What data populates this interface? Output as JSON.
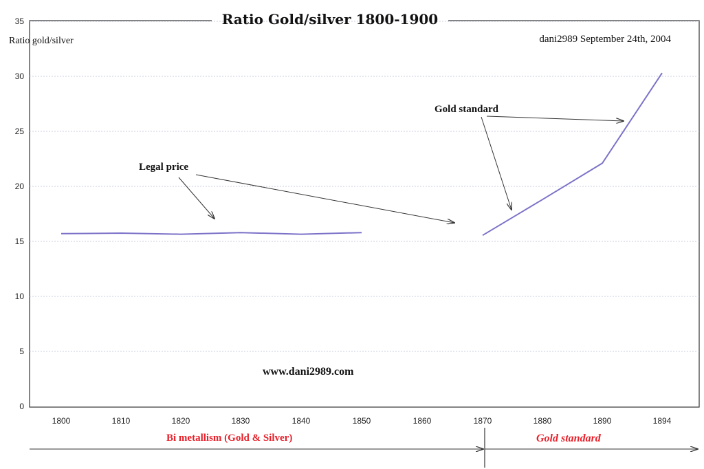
{
  "chart_data": {
    "type": "line",
    "title": "Ratio Gold/silver 1800-1900",
    "subtitle": "dani2989  September 24th,  2004",
    "ylabel": "Ratio gold/silver",
    "xlabel": "",
    "ylim": [
      0,
      35
    ],
    "y_ticks": [
      0,
      5,
      10,
      15,
      20,
      25,
      30,
      35
    ],
    "grid": true,
    "categories": [
      "1800",
      "1810",
      "1820",
      "1830",
      "1840",
      "1850",
      "1860",
      "1870",
      "1880",
      "1890",
      "1894"
    ],
    "series": [
      {
        "values": [
          15.7,
          15.75,
          15.65,
          15.8,
          15.65,
          15.8,
          null,
          15.55,
          18.8,
          22.1,
          30.3
        ],
        "color": "#7b72c8"
      }
    ],
    "annotations": [
      {
        "text": "Legal price"
      },
      {
        "text": "Gold standard"
      },
      {
        "text": "www.dani2989.com"
      }
    ],
    "periods": [
      {
        "label": "Bi metallism (Gold & Silver)",
        "color": "#e8202a"
      },
      {
        "label": "Gold standard",
        "color": "#e8202a"
      }
    ]
  }
}
